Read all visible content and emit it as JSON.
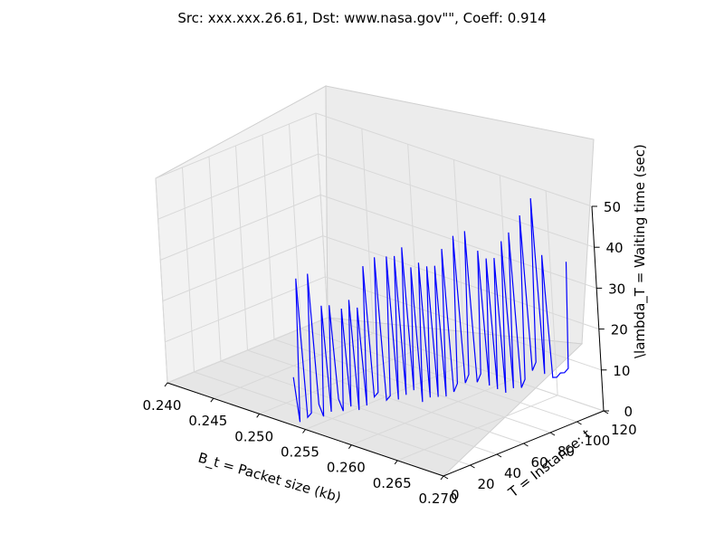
{
  "chart_data": {
    "type": "line",
    "projection": "3d",
    "title": "Src: xxx.xxx.26.61, Dst: www.nasa.gov\"\", Coeff: 0.914",
    "xlabel": "B_t = Packet size (kb)",
    "ylabel": "T = Instance: t",
    "zlabel": "\\lambda_T = Waiting time (sec)",
    "xlim": [
      0.24,
      0.27
    ],
    "ylim": [
      0,
      120
    ],
    "zlim": [
      0,
      50
    ],
    "xticks": [
      "0.240",
      "0.245",
      "0.250",
      "0.255",
      "0.260",
      "0.265",
      "0.270"
    ],
    "yticks": [
      "0",
      "20",
      "40",
      "60",
      "80",
      "100",
      "120"
    ],
    "zticks": [
      "0",
      "10",
      "20",
      "30",
      "40",
      "50"
    ],
    "grid": true,
    "line_color": "#0000ff",
    "series": [
      {
        "x": [
          0.254,
          0.2542,
          0.2544,
          0.2546,
          0.2548,
          0.255,
          0.2552,
          0.2554,
          0.2556,
          0.2558,
          0.256,
          0.2562,
          0.2564,
          0.2566,
          0.2568,
          0.257,
          0.2572,
          0.2574,
          0.2576,
          0.2578,
          0.258,
          0.2582,
          0.2584,
          0.2586,
          0.2588,
          0.259,
          0.2592,
          0.2594,
          0.2596,
          0.2598,
          0.26,
          0.2602,
          0.2604,
          0.2606,
          0.2608,
          0.261,
          0.2612,
          0.2614,
          0.2616,
          0.2618,
          0.262,
          0.2622,
          0.2624,
          0.2626,
          0.2628,
          0.263,
          0.2632,
          0.2634,
          0.2636,
          0.2638,
          0.264,
          0.2642,
          0.2644,
          0.2646,
          0.2648,
          0.265,
          0.2652,
          0.2654,
          0.2656,
          0.2658,
          0.266,
          0.2662,
          0.2664,
          0.2666,
          0.2668,
          0.267,
          0.2672,
          0.2674,
          0.2676,
          0.2678,
          0.268
        ],
        "y": [
          0,
          1.6,
          3.2,
          4.8,
          6.4,
          8,
          9.6,
          11.2,
          12.8,
          14.4,
          16,
          17.6,
          19.2,
          20.8,
          22.4,
          24,
          25.6,
          27.2,
          28.8,
          30.4,
          32,
          33.6,
          35.2,
          36.8,
          38.4,
          40,
          41.6,
          43.2,
          44.8,
          46.4,
          48,
          49.6,
          51.2,
          52.8,
          54.4,
          56,
          57.6,
          59.2,
          60.8,
          62.4,
          64,
          65.6,
          67.2,
          68.8,
          70.4,
          72,
          73.6,
          75.2,
          76.8,
          78.4,
          80,
          81.6,
          83.2,
          84.8,
          86.4,
          88,
          89.6,
          91.2,
          92.8,
          94.4,
          96,
          97.6,
          99.2,
          100.8,
          102.4,
          104,
          105.6,
          107.2,
          108.8,
          110.4,
          112
        ],
        "z": [
          12,
          1,
          36,
          2,
          3,
          37,
          5,
          2,
          29,
          3,
          29,
          6,
          3,
          28,
          4,
          30,
          3,
          28,
          4,
          38,
          6,
          7,
          40,
          5,
          6,
          40,
          5,
          40,
          6,
          42,
          7,
          37,
          4,
          38,
          5,
          37,
          5,
          37,
          5,
          41,
          6,
          8,
          44,
          8,
          10,
          45,
          8,
          10,
          40,
          7,
          38,
          6,
          38,
          5,
          42,
          6,
          44,
          6,
          8,
          48,
          10,
          12,
          52,
          9,
          38,
          8,
          8,
          9,
          9,
          10,
          36
        ]
      }
    ]
  }
}
